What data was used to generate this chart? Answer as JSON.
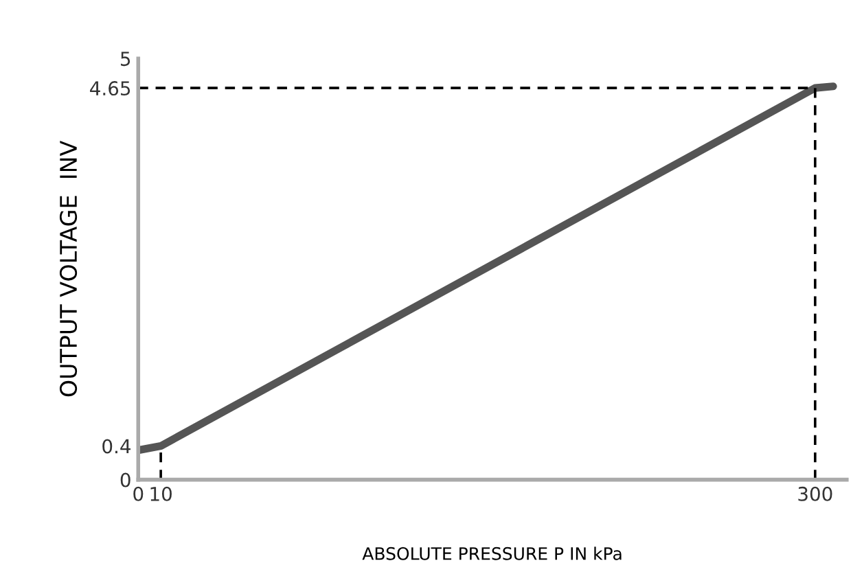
{
  "chart_data": {
    "type": "line",
    "xlabel": "ABSOLUTE PRESSURE P IN kPa",
    "ylabel": "OUTPUT VOLTAGE  INV",
    "x": [
      0,
      10,
      300,
      308
    ],
    "series": [
      {
        "color": "#555555",
        "values": [
          0.35,
          0.4,
          4.65,
          4.67
        ]
      }
    ],
    "xlim": [
      0,
      314
    ],
    "ylim": [
      0,
      5
    ],
    "xticks": [
      0,
      10,
      300
    ],
    "yticks": [
      0,
      0.4,
      4.65,
      5
    ],
    "ref_lines": [
      {
        "axis": "y",
        "value": 4.65,
        "line_style": "dashed",
        "color": "#000000"
      },
      {
        "axis": "x",
        "value": 300,
        "line_style": "dashed",
        "color": "#000000"
      },
      {
        "axis": "x",
        "value": 10,
        "line_style": "dashed",
        "color": "#000000"
      }
    ],
    "grid": false,
    "marker": "none",
    "line_style": "solid"
  }
}
